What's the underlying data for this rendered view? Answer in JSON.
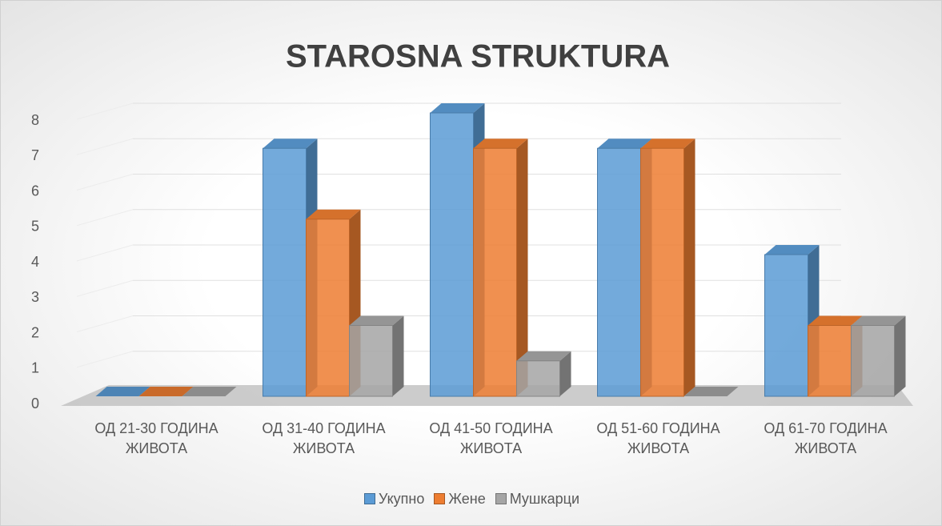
{
  "chart_data": {
    "type": "bar3d",
    "title": "STAROSNA STRUKTURA",
    "categories": [
      "ОД 21-30 ГОДИНА ЖИВОТА",
      "ОД 31-40 ГОДИНА ЖИВОТА",
      "ОД 41-50 ГОДИНА ЖИВОТА",
      "ОД 51-60 ГОДИНА ЖИВОТА",
      "ОД 61-70 ГОДИНА ЖИВОТА"
    ],
    "series": [
      {
        "name": "Укупно",
        "color": "#5b9bd5",
        "values": [
          0,
          7,
          8,
          7,
          4
        ]
      },
      {
        "name": "Жене",
        "color": "#ed7d31",
        "values": [
          0,
          5,
          7,
          7,
          2
        ]
      },
      {
        "name": "Мушкарци",
        "color": "#a5a5a5",
        "values": [
          0,
          2,
          1,
          0,
          2
        ]
      }
    ],
    "ylim": [
      0,
      8
    ],
    "yticks": [
      0,
      1,
      2,
      3,
      4,
      5,
      6,
      7,
      8
    ],
    "grid": true,
    "legend": "bottom"
  }
}
